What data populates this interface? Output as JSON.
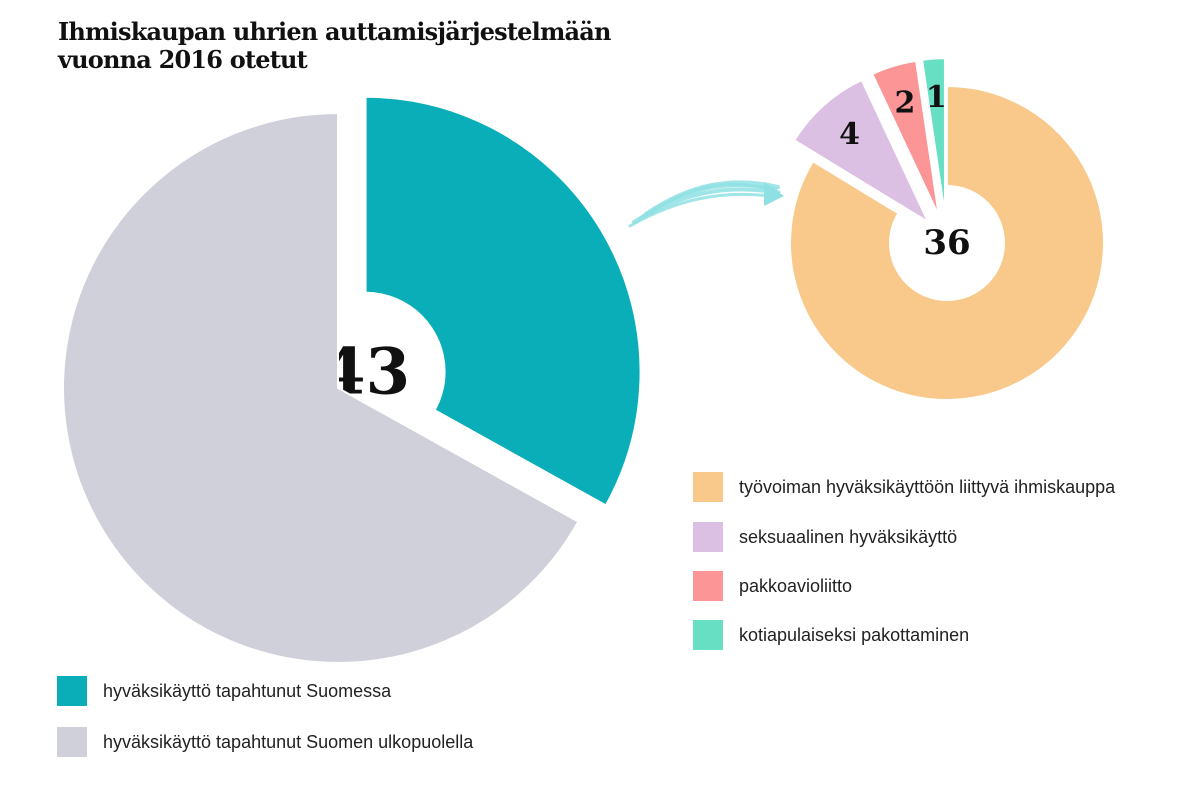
{
  "title": {
    "line1": "Ihmiskaupan uhrien auttamisjärjestelmään",
    "line2": "vuonna 2016 otetut"
  },
  "chart_data": [
    {
      "type": "pie",
      "slices": [
        {
          "label": "hyväksikäyttö tapahtunut Suomessa",
          "value": 43,
          "value_label": "43",
          "color": "#0aaeb8",
          "exploded": true
        },
        {
          "label": "hyväksikäyttö tapahtunut Suomen ulkopuolella",
          "value": 87,
          "value_label": "",
          "color": "#cfd0da",
          "exploded": false
        }
      ],
      "center_hole": true,
      "legend_position": "bottom-left"
    },
    {
      "type": "pie",
      "breakdown_of": "hyväksikäyttö tapahtunut Suomessa",
      "slices": [
        {
          "label": "työvoiman hyväksikäyttöön liittyvä ihmiskauppa",
          "value": 36,
          "value_label": "36",
          "color": "#f8c98a",
          "exploded": false
        },
        {
          "label": "seksuaalinen hyväksikäyttö",
          "value": 4,
          "value_label": "4",
          "color": "#dcc0e4",
          "exploded": true
        },
        {
          "label": "pakkoavioliitto",
          "value": 2,
          "value_label": "2",
          "color": "#fb9596",
          "exploded": true
        },
        {
          "label": "kotiapulaiseksi pakottaminen",
          "value": 1,
          "value_label": "1",
          "color": "#66dfc2",
          "exploded": true
        }
      ],
      "center_hole": true,
      "legend_position": "right"
    }
  ],
  "legend_left": [
    {
      "label": "hyväksikäyttö tapahtunut Suomessa",
      "color": "#0aaeb8"
    },
    {
      "label": "hyväksikäyttö tapahtunut Suomen ulkopuolella",
      "color": "#cfd0da"
    }
  ],
  "legend_right": [
    {
      "label": "työvoiman hyväksikäyttöön liittyvä ihmiskauppa",
      "color": "#f8c98a"
    },
    {
      "label": "seksuaalinen hyväksikäyttö",
      "color": "#dcc0e4"
    },
    {
      "label": "pakkoavioliitto",
      "color": "#fb9596"
    },
    {
      "label": "kotiapulaiseksi pakottaminen",
      "color": "#66dfc2"
    }
  ],
  "arrow_color": "#8fe0e3"
}
